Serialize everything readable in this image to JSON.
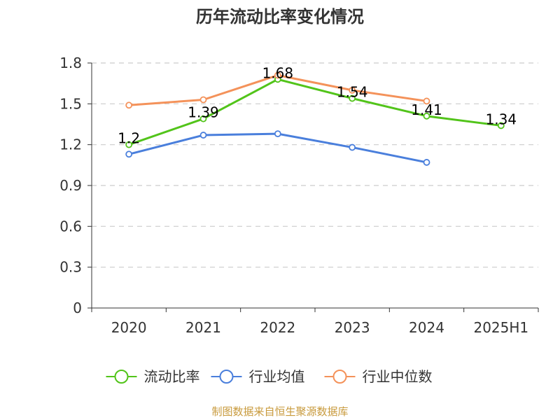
{
  "chart_data": {
    "type": "line",
    "title": "历年流动比率变化情况",
    "categories": [
      "2020",
      "2021",
      "2022",
      "2023",
      "2024",
      "2025H1"
    ],
    "ylim": [
      0,
      1.8
    ],
    "yticks": [
      "0",
      "0.3",
      "0.6",
      "0.9",
      "1.2",
      "1.5",
      "1.8"
    ],
    "grid": true,
    "legend_position": "bottom",
    "series": [
      {
        "name": "流动比率",
        "color": "#52c41a",
        "values": [
          1.2,
          1.39,
          1.68,
          1.54,
          1.41,
          1.34
        ],
        "labels": [
          "1.2",
          "1.39",
          "1.68",
          "1.54",
          "1.41",
          "1.34"
        ]
      },
      {
        "name": "行业均值",
        "color": "#4a7fdc",
        "values": [
          1.13,
          1.27,
          1.28,
          1.18,
          1.07,
          null
        ]
      },
      {
        "name": "行业中位数",
        "color": "#f4925a",
        "values": [
          1.49,
          1.53,
          1.71,
          1.6,
          1.52,
          null
        ]
      }
    ]
  },
  "source_text": "制图数据来自恒生聚源数据库"
}
